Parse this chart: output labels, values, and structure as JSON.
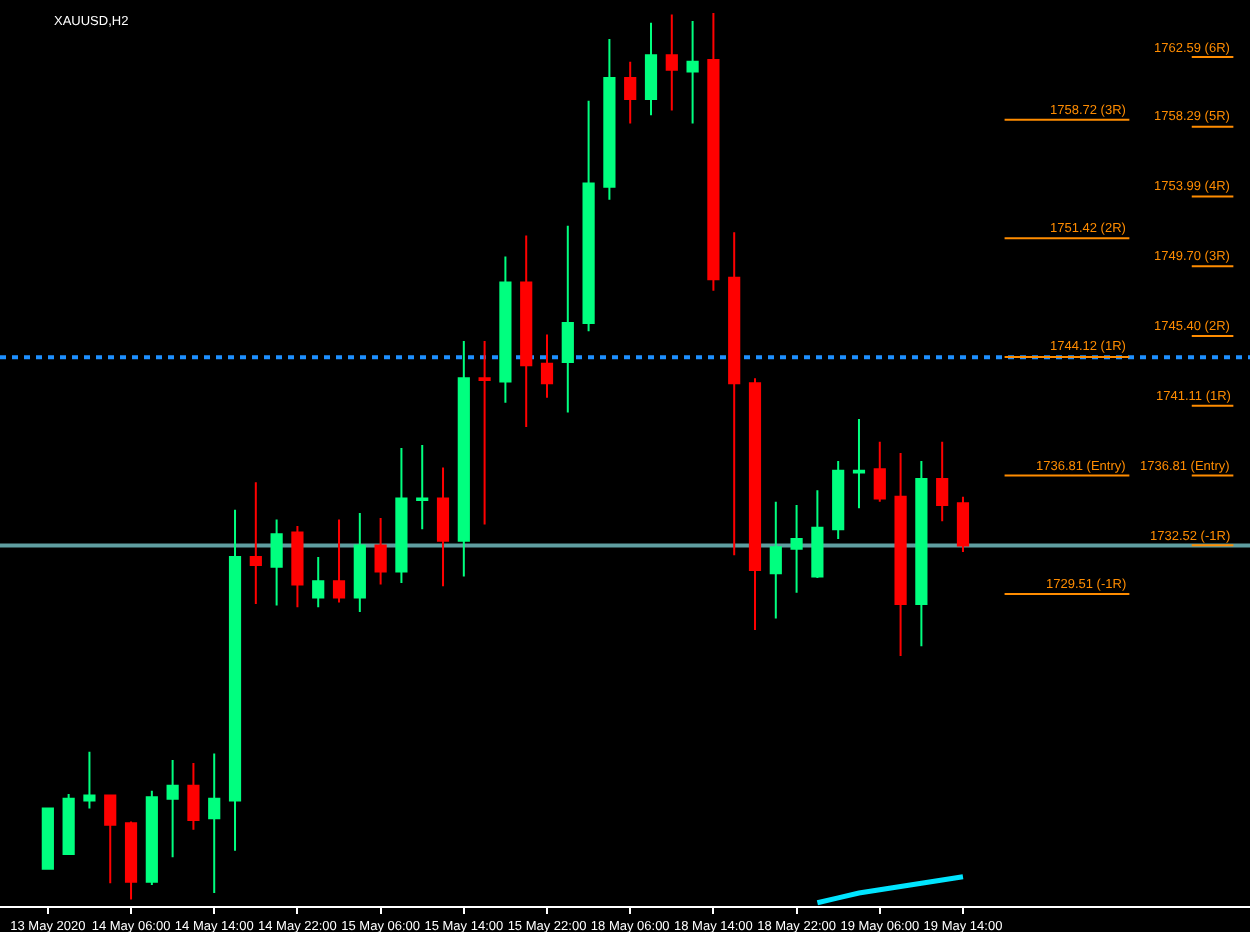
{
  "chart_data": {
    "type": "candlestick",
    "title": "XAUUSD,H2",
    "categories": [
      "13 May 2020",
      null,
      null,
      null,
      "14 May 06:00",
      null,
      null,
      null,
      "14 May 14:00",
      null,
      null,
      null,
      "14 May 22:00",
      null,
      null,
      null,
      "15 May 06:00",
      null,
      null,
      null,
      "15 May 14:00",
      null,
      null,
      null,
      "15 May 22:00",
      null,
      null,
      null,
      "18 May 06:00",
      null,
      null,
      null,
      "18 May 14:00",
      null,
      null,
      null,
      "18 May 22:00",
      null,
      null,
      null,
      "19 May 06:00",
      null,
      null,
      null,
      "19 May 14:00"
    ],
    "ohlc": [
      [
        1712.6,
        1716.3,
        1712.6,
        1716.3
      ],
      [
        1713.5,
        1717.2,
        1713.5,
        1716.9
      ],
      [
        1716.8,
        1719.8,
        1716.3,
        1717.1
      ],
      [
        1717.1,
        1717.1,
        1711.7,
        1715.3
      ],
      [
        1715.4,
        1715.5,
        1710.7,
        1711.8
      ],
      [
        1711.8,
        1717.4,
        1711.6,
        1717.0
      ],
      [
        1716.9,
        1719.3,
        1713.3,
        1717.7
      ],
      [
        1717.7,
        1719.1,
        1715.0,
        1715.6
      ],
      [
        1715.7,
        1719.7,
        1711.1,
        1716.9
      ],
      [
        1716.8,
        1734.7,
        1713.7,
        1731.8
      ],
      [
        1731.8,
        1736.4,
        1728.9,
        1731.3
      ],
      [
        1731.2,
        1734.1,
        1728.8,
        1733.2
      ],
      [
        1733.3,
        1733.7,
        1728.7,
        1730.1
      ],
      [
        1729.3,
        1731.8,
        1728.7,
        1730.3
      ],
      [
        1730.3,
        1734.1,
        1729.0,
        1729.3
      ],
      [
        1729.3,
        1734.5,
        1728.4,
        1732.5
      ],
      [
        1732.5,
        1734.2,
        1730.1,
        1730.9
      ],
      [
        1730.9,
        1738.5,
        1730.2,
        1735.4
      ],
      [
        1735.3,
        1738.7,
        1733.5,
        1735.4
      ],
      [
        1735.4,
        1737.3,
        1730.0,
        1732.8
      ],
      [
        1732.8,
        1745.1,
        1730.6,
        1742.8
      ],
      [
        1742.8,
        1745.1,
        1733.8,
        1742.7
      ],
      [
        1742.6,
        1750.3,
        1741.3,
        1748.7
      ],
      [
        1748.7,
        1751.6,
        1739.8,
        1743.6
      ],
      [
        1743.7,
        1745.5,
        1741.6,
        1742.5
      ],
      [
        1743.8,
        1752.2,
        1740.7,
        1746.2
      ],
      [
        1746.2,
        1759.9,
        1745.7,
        1754.8
      ],
      [
        1754.6,
        1763.7,
        1753.8,
        1761.3
      ],
      [
        1761.3,
        1762.3,
        1758.5,
        1760.0
      ],
      [
        1760.0,
        1764.7,
        1759.0,
        1762.7
      ],
      [
        1762.7,
        1765.2,
        1759.3,
        1761.8
      ],
      [
        1761.7,
        1764.8,
        1758.5,
        1762.3
      ],
      [
        1762.4,
        1765.3,
        1748.2,
        1748.9
      ],
      [
        1749.0,
        1751.8,
        1731.9,
        1742.5
      ],
      [
        1742.5,
        1742.8,
        1727.3,
        1731.0
      ],
      [
        1730.8,
        1735.2,
        1728.0,
        1732.4
      ],
      [
        1732.3,
        1735.0,
        1729.6,
        1732.9
      ],
      [
        1730.6,
        1735.9,
        1730.5,
        1733.6
      ],
      [
        1733.5,
        1737.7,
        1732.9,
        1737.1
      ],
      [
        1737.0,
        1740.3,
        1734.8,
        1737.1
      ],
      [
        1737.2,
        1738.9,
        1735.2,
        1735.4
      ],
      [
        1735.5,
        1738.2,
        1725.7,
        1728.9
      ],
      [
        1728.9,
        1737.7,
        1726.3,
        1736.6
      ],
      [
        1736.6,
        1738.9,
        1734.0,
        1735.0
      ],
      [
        1735.1,
        1735.5,
        1732.1,
        1732.5
      ]
    ],
    "colors": [
      "#00ff7f",
      "#00ff7f",
      "#00ff7f",
      "#ff0000",
      "#ff0000",
      "#00ff7f",
      "#00ff7f",
      "#ff0000",
      "#00ff7f",
      "#00ff7f",
      "#ff0000",
      "#00ff7f",
      "#ff0000",
      "#00ff7f",
      "#ff0000",
      "#00ff7f",
      "#ff0000",
      "#00ff7f",
      "#00ff7f",
      "#ff0000",
      "#00ff7f",
      "#ff0000",
      "#00ff7f",
      "#ff0000",
      "#ff0000",
      "#00ff7f",
      "#00ff7f",
      "#00ff7f",
      "#ff0000",
      "#00ff7f",
      "#ff0000",
      "#00ff7f",
      "#ff0000",
      "#ff0000",
      "#ff0000",
      "#00ff7f",
      "#00ff7f",
      "#00ff7f",
      "#00ff7f",
      "#00ff7f",
      "#ff0000",
      "#ff0000",
      "#00ff7f",
      "#ff0000",
      "#ff0000"
    ],
    "series": [
      {
        "type": "line",
        "color": "#00e5ff",
        "values": [
          null,
          null,
          null,
          null,
          null,
          null,
          null,
          null,
          null,
          null,
          null,
          null,
          null,
          null,
          null,
          null,
          null,
          null,
          null,
          null,
          null,
          null,
          null,
          null,
          null,
          null,
          null,
          null,
          null,
          null,
          null,
          null,
          null,
          null,
          null,
          null,
          null,
          1710.5,
          1710.8,
          1711.1,
          1711.3,
          1711.5,
          1711.7,
          1711.9,
          1712.1
        ]
      }
    ],
    "ylim": [
      1710.3,
      1766.1
    ],
    "y2lim": [
      1710.3,
      1766.1
    ],
    "tick_labels": "x",
    "ref_lines": [
      {
        "axis": "y",
        "value": 1744.1,
        "color": "#1e90ff",
        "line_style": "dotted"
      },
      {
        "axis": "y",
        "value": 1732.5,
        "color": "#5f9ea0",
        "line_style": "solid"
      },
      {
        "axis": "y",
        "value": 1758.72,
        "label": "1758.72 (3R)",
        "color": "#ff8c00"
      },
      {
        "axis": "y",
        "value": 1751.42,
        "label": "1751.42 (2R)",
        "color": "#ff8c00"
      },
      {
        "axis": "y",
        "value": 1744.12,
        "label": "1744.12 (1R)",
        "color": "#ff8c00"
      },
      {
        "axis": "y",
        "value": 1736.81,
        "label": "1736.81 (Entry)",
        "color": "#ff8c00"
      },
      {
        "axis": "y",
        "value": 1729.51,
        "label": "1729.51 (-1R)",
        "color": "#ff8c00"
      },
      {
        "axis": "y2",
        "value": 1762.59,
        "label": "1762.59 (6R)",
        "color": "#ff8c00"
      },
      {
        "axis": "y2",
        "value": 1758.29,
        "label": "1758.29 (5R)",
        "color": "#ff8c00"
      },
      {
        "axis": "y2",
        "value": 1753.99,
        "label": "1753.99 (4R)",
        "color": "#ff8c00"
      },
      {
        "axis": "y2",
        "value": 1749.7,
        "label": "1749.70 (3R)",
        "color": "#ff8c00"
      },
      {
        "axis": "y2",
        "value": 1745.4,
        "label": "1745.40 (2R)",
        "color": "#ff8c00"
      },
      {
        "axis": "y2",
        "value": 1741.11,
        "label": "1741.11 (1R)",
        "color": "#ff8c00"
      },
      {
        "axis": "y2",
        "value": 1736.81,
        "label": "1736.81 (Entry)",
        "color": "#ff8c00"
      },
      {
        "axis": "y2",
        "value": 1732.52,
        "label": "1732.52 (-1R)",
        "color": "#ff8c00"
      }
    ]
  }
}
